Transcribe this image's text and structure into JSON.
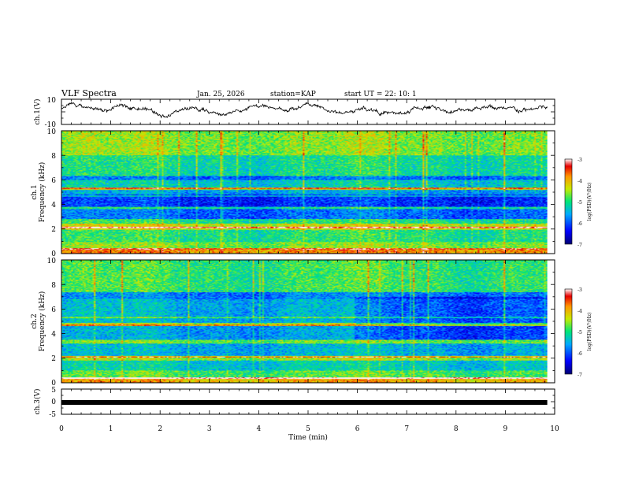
{
  "header": {
    "title": "VLF Spectra",
    "date": "Jan. 25, 2026",
    "station": "station=KAP",
    "start": "start  UT =   22: 10: 1"
  },
  "chart_data": {
    "type": "heatmap",
    "title": "VLF Spectra",
    "xlabel": "Time (min)",
    "xlim": [
      0,
      10
    ],
    "x_ticks": [
      "0",
      "1",
      "2",
      "3",
      "4",
      "5",
      "6",
      "7",
      "8",
      "9",
      "10"
    ],
    "data_end_min": 9.85,
    "panels": [
      {
        "name": "ch.1(V)",
        "type": "line",
        "ylabel": "ch.1(V)",
        "ylim": [
          -10,
          10
        ],
        "y_ticks": [
          "10",
          "-10"
        ],
        "note": "noisy voltage trace fluctuating roughly between -5 and +7 V"
      },
      {
        "name": "ch.1 spectrogram",
        "type": "heatmap",
        "ylabel_line1": "ch.1",
        "ylabel_line2": "Frequency (kHz)",
        "ylim": [
          0,
          10
        ],
        "y_ticks": [
          "0",
          "2",
          "4",
          "6",
          "8",
          "10"
        ],
        "colorbar": {
          "label": "log(PSD)(V²/Hz)",
          "ticks": [
            "-3",
            "-4",
            "-5",
            "-6",
            "-7"
          ],
          "range": [
            -7,
            -3
          ]
        },
        "bands": [
          {
            "f0": 0.0,
            "f1": 0.3,
            "value": -3.8
          },
          {
            "f0": 0.3,
            "f1": 0.9,
            "value": -4.6
          },
          {
            "f0": 0.9,
            "f1": 1.9,
            "value": -5.0
          },
          {
            "f0": 1.9,
            "f1": 2.4,
            "value": -4.3
          },
          {
            "f0": 2.4,
            "f1": 2.8,
            "value": -5.0
          },
          {
            "f0": 2.8,
            "f1": 3.6,
            "value": -5.9
          },
          {
            "f0": 3.6,
            "f1": 3.8,
            "value": -5.1
          },
          {
            "f0": 3.8,
            "f1": 4.8,
            "value": -6.2
          },
          {
            "f0": 4.8,
            "f1": 5.2,
            "value": -5.6
          },
          {
            "f0": 5.2,
            "f1": 5.4,
            "value": -4.4
          },
          {
            "f0": 5.4,
            "f1": 6.0,
            "value": -5.3
          },
          {
            "f0": 6.0,
            "f1": 6.3,
            "value": -5.9
          },
          {
            "f0": 6.3,
            "f1": 8.0,
            "value": -5.1
          },
          {
            "f0": 8.0,
            "f1": 10.0,
            "value": -4.6
          }
        ]
      },
      {
        "name": "ch.2 spectrogram",
        "type": "heatmap",
        "ylabel_line1": "ch.2",
        "ylabel_line2": "Frequency (kHz)",
        "ylim": [
          0,
          10
        ],
        "y_ticks": [
          "0",
          "2",
          "4",
          "6",
          "8",
          "10"
        ],
        "colorbar": {
          "label": "log(PSD)(V²/Hz)",
          "ticks": [
            "-3",
            "-4",
            "-5",
            "-6",
            "-7"
          ],
          "range": [
            -7,
            -3
          ]
        },
        "bands": [
          {
            "f0": 0.0,
            "f1": 0.4,
            "value": -4.0
          },
          {
            "f0": 0.4,
            "f1": 1.0,
            "value": -4.8
          },
          {
            "f0": 1.0,
            "f1": 1.8,
            "value": -5.3
          },
          {
            "f0": 1.8,
            "f1": 2.1,
            "value": -4.5
          },
          {
            "f0": 2.1,
            "f1": 3.2,
            "value": -5.5
          },
          {
            "f0": 3.2,
            "f1": 3.5,
            "value": -4.7
          },
          {
            "f0": 3.5,
            "f1": 4.6,
            "value": -5.6
          },
          {
            "f0": 4.6,
            "f1": 4.9,
            "value": -4.5
          },
          {
            "f0": 4.9,
            "f1": 6.8,
            "value": -5.5
          },
          {
            "f0": 6.8,
            "f1": 7.4,
            "value": -5.8
          },
          {
            "f0": 7.4,
            "f1": 10.0,
            "value": -4.9
          }
        ]
      },
      {
        "name": "ch.3(V)",
        "type": "line",
        "ylabel": "ch.3(V)",
        "ylim": [
          -5,
          5
        ],
        "y_ticks": [
          "5",
          "0",
          "-5"
        ],
        "note": "dense oscillation forming a solid band near -1 V"
      }
    ]
  }
}
